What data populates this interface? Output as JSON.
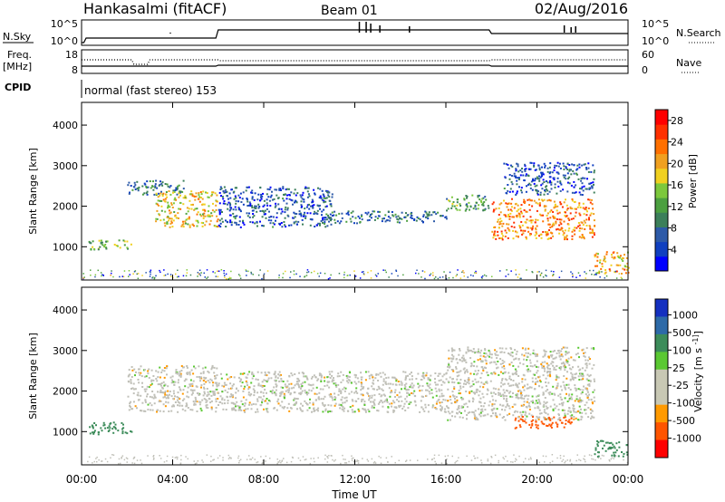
{
  "header": {
    "station": "Hankasalmi (fitACF)",
    "beam": "Beam 01",
    "date": "02/Aug/2016"
  },
  "noise_panel": {
    "left_label": "N.Sky",
    "right_label": "N.Search",
    "left_ticks": [
      "10^5",
      "10^0"
    ],
    "right_ticks": [
      "10^5",
      "10^0"
    ]
  },
  "freq_panel": {
    "left_label_1": "Freq.",
    "left_label_2": "[MHz]",
    "right_label": "Nave",
    "left_ticks": [
      "18",
      "8"
    ],
    "right_ticks": [
      "60",
      "0"
    ]
  },
  "cpid": {
    "label": "CPID",
    "text": "normal (fast stereo) 153"
  },
  "colors": {
    "power_scale": [
      "#0000ff",
      "#1040c0",
      "#2d5aa8",
      "#3c7f5a",
      "#4ca040",
      "#7cc83c",
      "#f0d020",
      "#f0a020",
      "#ff7000",
      "#ff3000",
      "#ff0000"
    ],
    "velocity_scale": [
      "#ff0000",
      "#ff5500",
      "#ff9a00",
      "#c8c8b4",
      "#c8c8b4",
      "#5ac832",
      "#3c8c5a",
      "#2d6aa8",
      "#1430c0"
    ],
    "ground_scatter": "#c0c0b8"
  },
  "chart_data": [
    {
      "type": "heatmap",
      "title": "",
      "xlabel": "",
      "ylabel": "Slant Range [km]",
      "x_ticks": [
        "00:00",
        "04:00",
        "08:00",
        "12:00",
        "16:00",
        "20:00",
        "00:00"
      ],
      "x_range_hours": [
        0,
        24
      ],
      "y_ticks": [
        "1000",
        "2000",
        "3000",
        "4000"
      ],
      "ylim": [
        180,
        4560
      ],
      "colorbar": {
        "label": "Power [dB]",
        "ticks": [
          "4",
          "8",
          "12",
          "16",
          "20",
          "24",
          "28"
        ],
        "range": [
          0,
          30
        ]
      },
      "echo_regions": [
        {
          "x": [
            0.3,
            2.2
          ],
          "y": [
            950,
            1200
          ],
          "value": 14
        },
        {
          "x": [
            2.0,
            4.5
          ],
          "y": [
            2300,
            2650
          ],
          "value": 8
        },
        {
          "x": [
            3.2,
            6.0
          ],
          "y": [
            1500,
            2400
          ],
          "value": 18
        },
        {
          "x": [
            6.0,
            11.0
          ],
          "y": [
            1500,
            2500
          ],
          "value": 6
        },
        {
          "x": [
            10.5,
            16.0
          ],
          "y": [
            1600,
            1900
          ],
          "value": 8
        },
        {
          "x": [
            16.0,
            18.0
          ],
          "y": [
            1900,
            2300
          ],
          "value": 12
        },
        {
          "x": [
            18.0,
            22.5
          ],
          "y": [
            1200,
            2200
          ],
          "value": 22
        },
        {
          "x": [
            18.5,
            22.5
          ],
          "y": [
            2300,
            3100
          ],
          "value": 6
        },
        {
          "x": [
            22.5,
            24.0
          ],
          "y": [
            350,
            900
          ],
          "value": 20
        }
      ]
    },
    {
      "type": "heatmap",
      "title": "",
      "xlabel": "Time UT",
      "ylabel": "Slant Range [km]",
      "x_ticks": [
        "00:00",
        "04:00",
        "08:00",
        "12:00",
        "16:00",
        "20:00",
        "00:00"
      ],
      "x_range_hours": [
        0,
        24
      ],
      "y_ticks": [
        "1000",
        "2000",
        "3000",
        "4000"
      ],
      "ylim": [
        180,
        4560
      ],
      "colorbar": {
        "label": "Velocity [m s^-1]",
        "ticks": [
          "1000",
          "500",
          "100",
          "25",
          "-25",
          "-100",
          "-500",
          "-1000"
        ]
      },
      "echo_regions": [
        {
          "x": [
            0.3,
            2.2
          ],
          "y": [
            950,
            1250
          ],
          "value": 200
        },
        {
          "x": [
            2.0,
            6.0
          ],
          "y": [
            1500,
            2650
          ],
          "value": 0
        },
        {
          "x": [
            6.0,
            16.0
          ],
          "y": [
            1500,
            2500
          ],
          "value": 0
        },
        {
          "x": [
            16.0,
            22.5
          ],
          "y": [
            1300,
            3100
          ],
          "value": 0
        },
        {
          "x": [
            19.0,
            21.5
          ],
          "y": [
            1100,
            1400
          ],
          "value": -300
        },
        {
          "x": [
            22.5,
            24.0
          ],
          "y": [
            400,
            800
          ],
          "value": 300
        }
      ]
    }
  ]
}
